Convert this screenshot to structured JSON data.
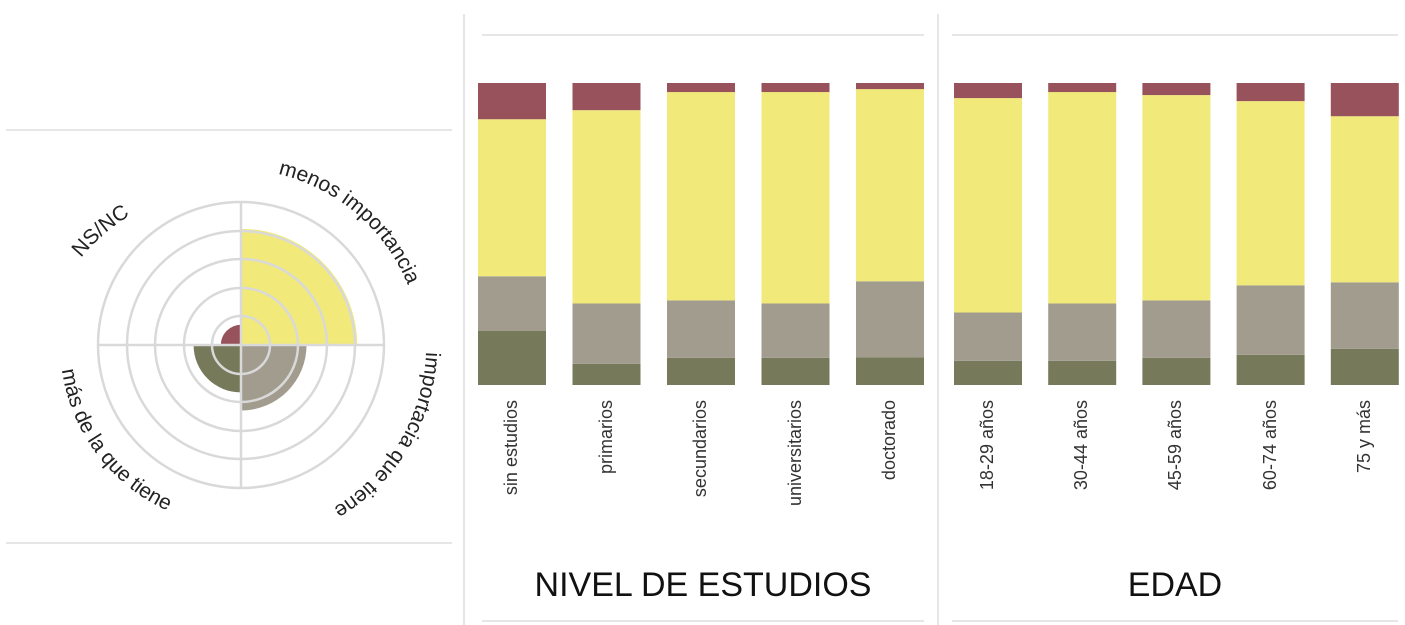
{
  "colors": {
    "ns_nc": "#98525c",
    "menos_importancia": "#f1e97a",
    "importancia_que_tiene": "#a19c8e",
    "mas_de_la_que_tiene": "#76795a",
    "ring": "#d9d9d9",
    "rule": "#e6e6e6"
  },
  "radial": {
    "labels": {
      "ns_nc": "NS/NC",
      "menos": "menos importancia",
      "importancia": "importacia que tiene",
      "mas": "más de la que tiene"
    },
    "values": {
      "ns_nc": 0.02,
      "menos_importancia": 0.66,
      "importancia_que_tiene": 0.21,
      "mas_de_la_que_tiene": 0.11
    }
  },
  "chart_data": [
    {
      "type": "bar",
      "stacked": true,
      "orientation": "vertical",
      "title": "NIVEL DE ESTUDIOS",
      "categories": [
        "sin estudios",
        "primarios",
        "secundarios",
        "universitarios",
        "doctorado"
      ],
      "series": [
        {
          "name": "más de la que tiene",
          "values": [
            18,
            7,
            9,
            9,
            9
          ]
        },
        {
          "name": "importacia que tiene",
          "values": [
            18,
            20,
            19,
            18,
            25
          ]
        },
        {
          "name": "menos importancia",
          "values": [
            52,
            64,
            69,
            70,
            63
          ]
        },
        {
          "name": "NS/NC",
          "values": [
            12,
            9,
            3,
            3,
            2
          ]
        }
      ],
      "ylim": [
        0,
        100
      ]
    },
    {
      "type": "bar",
      "stacked": true,
      "orientation": "vertical",
      "title": "EDAD",
      "categories": [
        "18-29 años",
        "30-44 años",
        "45-59 años",
        "60-74 años",
        "75 y más"
      ],
      "series": [
        {
          "name": "más de la que tiene",
          "values": [
            8,
            8,
            9,
            10,
            12
          ]
        },
        {
          "name": "importacia que tiene",
          "values": [
            16,
            19,
            19,
            23,
            22
          ]
        },
        {
          "name": "menos importancia",
          "values": [
            71,
            70,
            68,
            61,
            55
          ]
        },
        {
          "name": "NS/NC",
          "values": [
            5,
            3,
            4,
            6,
            11
          ]
        }
      ],
      "ylim": [
        0,
        100
      ]
    }
  ]
}
